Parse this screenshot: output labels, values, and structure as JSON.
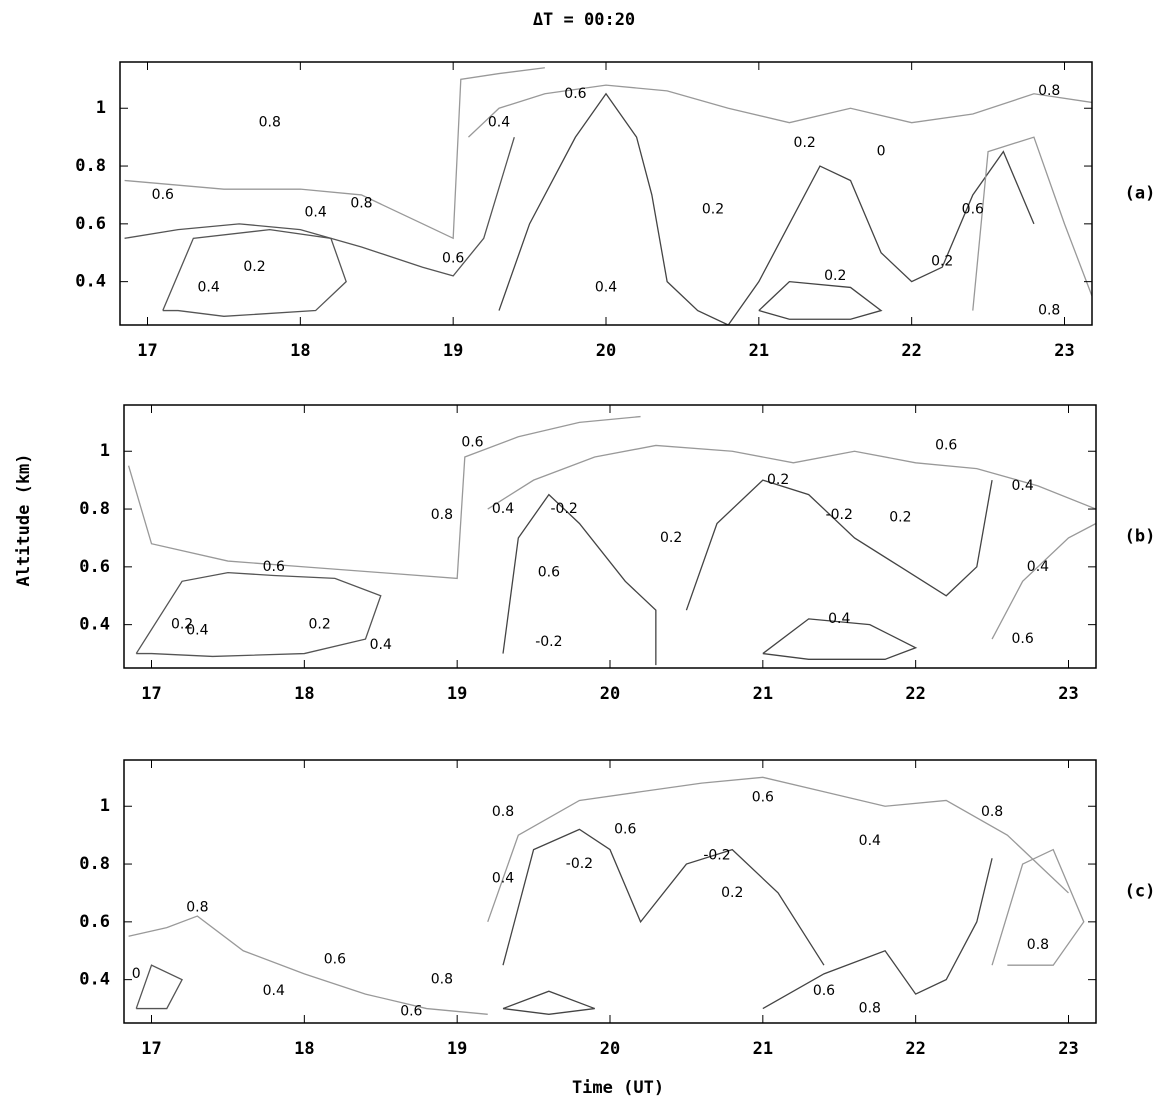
{
  "figure": {
    "title": "ΔT = 00:20",
    "ylabel": "Altitude (km)",
    "xlabel": "Time (UT)"
  },
  "chart_data": [
    {
      "type": "contour",
      "label": "(a)",
      "xlim": [
        16.82,
        23.18
      ],
      "ylim": [
        0.25,
        1.16
      ],
      "xticks": [
        17,
        18,
        19,
        20,
        21,
        22,
        23
      ],
      "yticks": [
        0.4,
        0.6,
        0.8,
        1
      ],
      "contours": [
        {
          "color": "#999999",
          "x": [
            16.85,
            17.5,
            18.0,
            18.4,
            18.8,
            19.0,
            19.05,
            19.3,
            19.6
          ],
          "y": [
            0.75,
            0.72,
            0.72,
            0.7,
            0.6,
            0.55,
            1.1,
            1.12,
            1.14
          ]
        },
        {
          "color": "#555555",
          "x": [
            16.85,
            17.2,
            17.6,
            18.0,
            18.4,
            18.8,
            19.0,
            19.2,
            19.4
          ],
          "y": [
            0.55,
            0.58,
            0.6,
            0.58,
            0.52,
            0.45,
            0.42,
            0.55,
            0.9
          ]
        },
        {
          "color": "#555555",
          "x": [
            17.1,
            17.3,
            17.8,
            18.2,
            18.3,
            18.1,
            17.5,
            17.2,
            17.1
          ],
          "y": [
            0.3,
            0.55,
            0.58,
            0.55,
            0.4,
            0.3,
            0.28,
            0.3,
            0.3
          ]
        },
        {
          "color": "#444444",
          "x": [
            19.3,
            19.5,
            19.8,
            20.0,
            20.2,
            20.3,
            20.4,
            20.6,
            20.8
          ],
          "y": [
            0.3,
            0.6,
            0.9,
            1.05,
            0.9,
            0.7,
            0.4,
            0.3,
            0.25
          ]
        },
        {
          "color": "#999999",
          "x": [
            19.1,
            19.3,
            19.6,
            20.0,
            20.4,
            20.8,
            21.2,
            21.6,
            22.0,
            22.4,
            22.8,
            23.18
          ],
          "y": [
            0.9,
            1.0,
            1.05,
            1.08,
            1.06,
            1.0,
            0.95,
            1.0,
            0.95,
            0.98,
            1.05,
            1.02
          ]
        },
        {
          "color": "#444444",
          "x": [
            20.8,
            21.0,
            21.2,
            21.4,
            21.6,
            21.8,
            22.0,
            22.2,
            22.4,
            22.6,
            22.8
          ],
          "y": [
            0.25,
            0.4,
            0.6,
            0.8,
            0.75,
            0.5,
            0.4,
            0.45,
            0.7,
            0.85,
            0.6
          ]
        },
        {
          "color": "#444444",
          "x": [
            21.0,
            21.2,
            21.6,
            21.8,
            21.6,
            21.2,
            21.0
          ],
          "y": [
            0.3,
            0.4,
            0.38,
            0.3,
            0.27,
            0.27,
            0.3
          ]
        },
        {
          "color": "#999999",
          "x": [
            22.4,
            22.5,
            22.8,
            23.0,
            23.18
          ],
          "y": [
            0.3,
            0.85,
            0.9,
            0.6,
            0.35
          ]
        }
      ],
      "contour_labels": [
        {
          "x": 17.8,
          "y": 0.95,
          "level": 0.8
        },
        {
          "x": 17.1,
          "y": 0.7,
          "level": 0.6
        },
        {
          "x": 18.1,
          "y": 0.64,
          "level": 0.4
        },
        {
          "x": 18.4,
          "y": 0.67,
          "level": 0.8
        },
        {
          "x": 17.4,
          "y": 0.38,
          "level": 0.4
        },
        {
          "x": 17.7,
          "y": 0.45,
          "level": 0.2
        },
        {
          "x": 19.0,
          "y": 0.48,
          "level": 0.6
        },
        {
          "x": 19.3,
          "y": 0.95,
          "level": 0.4
        },
        {
          "x": 19.8,
          "y": 1.05,
          "level": 0.6
        },
        {
          "x": 20.0,
          "y": 0.38,
          "level": 0.4
        },
        {
          "x": 20.7,
          "y": 0.65,
          "level": 0.2
        },
        {
          "x": 21.3,
          "y": 0.88,
          "level": 0.2
        },
        {
          "x": 21.5,
          "y": 0.42,
          "level": 0.2
        },
        {
          "x": 22.2,
          "y": 0.47,
          "level": 0.2
        },
        {
          "x": 22.9,
          "y": 1.06,
          "level": 0.8
        },
        {
          "x": 22.9,
          "y": 0.3,
          "level": 0.8
        },
        {
          "x": 21.8,
          "y": 0.85,
          "level": 0
        },
        {
          "x": 22.4,
          "y": 0.65,
          "level": 0.6
        }
      ]
    },
    {
      "type": "contour",
      "label": "(b)",
      "xlim": [
        16.82,
        23.18
      ],
      "ylim": [
        0.25,
        1.16
      ],
      "xticks": [
        17,
        18,
        19,
        20,
        21,
        22,
        23
      ],
      "yticks": [
        0.4,
        0.6,
        0.8,
        1
      ],
      "contours": [
        {
          "color": "#999999",
          "x": [
            16.85,
            17.0,
            17.5,
            18.0,
            18.5,
            19.0,
            19.05,
            19.4,
            19.8,
            20.2
          ],
          "y": [
            0.95,
            0.68,
            0.62,
            0.6,
            0.58,
            0.56,
            0.98,
            1.05,
            1.1,
            1.12
          ]
        },
        {
          "color": "#555555",
          "x": [
            16.9,
            17.2,
            17.5,
            17.8,
            18.2,
            18.5,
            18.4,
            18.0,
            17.4,
            17.0,
            16.9
          ],
          "y": [
            0.3,
            0.55,
            0.58,
            0.57,
            0.56,
            0.5,
            0.35,
            0.3,
            0.29,
            0.3,
            0.3
          ]
        },
        {
          "color": "#444444",
          "x": [
            19.3,
            19.4,
            19.6,
            19.8,
            20.1,
            20.3,
            20.3
          ],
          "y": [
            0.3,
            0.7,
            0.85,
            0.75,
            0.55,
            0.45,
            0.26
          ]
        },
        {
          "color": "#999999",
          "x": [
            19.2,
            19.5,
            19.9,
            20.3,
            20.8,
            21.2,
            21.6,
            22.0,
            22.4,
            22.8,
            23.18
          ],
          "y": [
            0.8,
            0.9,
            0.98,
            1.02,
            1.0,
            0.96,
            1.0,
            0.96,
            0.94,
            0.88,
            0.8
          ]
        },
        {
          "color": "#444444",
          "x": [
            20.5,
            20.7,
            21.0,
            21.3,
            21.6,
            21.9,
            22.2,
            22.4,
            22.5
          ],
          "y": [
            0.45,
            0.75,
            0.9,
            0.85,
            0.7,
            0.6,
            0.5,
            0.6,
            0.9
          ]
        },
        {
          "color": "#444444",
          "x": [
            21.0,
            21.3,
            21.7,
            22.0,
            21.8,
            21.3,
            21.0
          ],
          "y": [
            0.3,
            0.42,
            0.4,
            0.32,
            0.28,
            0.28,
            0.3
          ]
        },
        {
          "color": "#999999",
          "x": [
            22.5,
            22.7,
            23.0,
            23.18
          ],
          "y": [
            0.35,
            0.55,
            0.7,
            0.75
          ]
        }
      ],
      "contour_labels": [
        {
          "x": 17.8,
          "y": 0.6,
          "level": 0.6
        },
        {
          "x": 17.2,
          "y": 0.4,
          "level": 0.2
        },
        {
          "x": 17.3,
          "y": 0.38,
          "level": 0.4
        },
        {
          "x": 18.1,
          "y": 0.4,
          "level": 0.2
        },
        {
          "x": 18.5,
          "y": 0.33,
          "level": 0.4
        },
        {
          "x": 18.9,
          "y": 0.78,
          "level": 0.8
        },
        {
          "x": 19.1,
          "y": 1.03,
          "level": 0.6
        },
        {
          "x": 19.3,
          "y": 0.8,
          "level": 0.4
        },
        {
          "x": 19.7,
          "y": 0.8,
          "level": -0.2
        },
        {
          "x": 19.6,
          "y": 0.34,
          "level": -0.2
        },
        {
          "x": 19.6,
          "y": 0.58,
          "level": 0.6
        },
        {
          "x": 20.4,
          "y": 0.7,
          "level": 0.2
        },
        {
          "x": 21.1,
          "y": 0.9,
          "level": 0.2
        },
        {
          "x": 21.5,
          "y": 0.78,
          "level": -0.2
        },
        {
          "x": 21.9,
          "y": 0.77,
          "level": 0.2
        },
        {
          "x": 21.5,
          "y": 0.42,
          "level": 0.4
        },
        {
          "x": 22.2,
          "y": 1.02,
          "level": 0.6
        },
        {
          "x": 22.7,
          "y": 0.88,
          "level": 0.4
        },
        {
          "x": 22.8,
          "y": 0.6,
          "level": 0.4
        },
        {
          "x": 22.7,
          "y": 0.35,
          "level": 0.6
        }
      ]
    },
    {
      "type": "contour",
      "label": "(c)",
      "xlim": [
        16.82,
        23.18
      ],
      "ylim": [
        0.25,
        1.16
      ],
      "xticks": [
        17,
        18,
        19,
        20,
        21,
        22,
        23
      ],
      "yticks": [
        0.4,
        0.6,
        0.8,
        1
      ],
      "contours": [
        {
          "color": "#999999",
          "x": [
            16.85,
            17.1,
            17.3,
            17.6,
            18.0,
            18.4,
            18.8,
            19.2
          ],
          "y": [
            0.55,
            0.58,
            0.62,
            0.5,
            0.42,
            0.35,
            0.3,
            0.28
          ]
        },
        {
          "color": "#555555",
          "x": [
            16.9,
            17.0,
            17.2,
            17.1,
            16.9
          ],
          "y": [
            0.3,
            0.45,
            0.4,
            0.3,
            0.3
          ]
        },
        {
          "color": "#999999",
          "x": [
            19.2,
            19.4,
            19.8,
            20.2,
            20.6,
            21.0,
            21.4,
            21.8,
            22.2,
            22.6,
            23.0
          ],
          "y": [
            0.6,
            0.9,
            1.02,
            1.05,
            1.08,
            1.1,
            1.05,
            1.0,
            1.02,
            0.9,
            0.7
          ]
        },
        {
          "color": "#444444",
          "x": [
            19.3,
            19.5,
            19.8,
            20.0,
            20.2,
            20.5,
            20.8,
            21.1,
            21.4
          ],
          "y": [
            0.45,
            0.85,
            0.92,
            0.85,
            0.6,
            0.8,
            0.85,
            0.7,
            0.45
          ]
        },
        {
          "color": "#444444",
          "x": [
            19.3,
            19.6,
            19.9,
            19.6,
            19.3
          ],
          "y": [
            0.3,
            0.36,
            0.3,
            0.28,
            0.3
          ]
        },
        {
          "color": "#444444",
          "x": [
            21.0,
            21.4,
            21.8,
            22.0,
            22.2,
            22.4,
            22.5
          ],
          "y": [
            0.3,
            0.42,
            0.5,
            0.35,
            0.4,
            0.6,
            0.82
          ]
        },
        {
          "color": "#999999",
          "x": [
            22.5,
            22.7,
            22.9,
            23.1,
            22.9,
            22.6
          ],
          "y": [
            0.45,
            0.8,
            0.85,
            0.6,
            0.45,
            0.45
          ]
        }
      ],
      "contour_labels": [
        {
          "x": 17.3,
          "y": 0.65,
          "level": 0.8
        },
        {
          "x": 16.9,
          "y": 0.42,
          "level": 0
        },
        {
          "x": 17.8,
          "y": 0.36,
          "level": 0.4
        },
        {
          "x": 18.2,
          "y": 0.47,
          "level": 0.6
        },
        {
          "x": 18.7,
          "y": 0.29,
          "level": 0.6
        },
        {
          "x": 18.9,
          "y": 0.4,
          "level": 0.8
        },
        {
          "x": 19.3,
          "y": 0.98,
          "level": 0.8
        },
        {
          "x": 19.3,
          "y": 0.75,
          "level": 0.4
        },
        {
          "x": 19.8,
          "y": 0.8,
          "level": -0.2
        },
        {
          "x": 20.1,
          "y": 0.92,
          "level": 0.6
        },
        {
          "x": 20.7,
          "y": 0.83,
          "level": -0.2
        },
        {
          "x": 21.0,
          "y": 1.03,
          "level": 0.6
        },
        {
          "x": 20.8,
          "y": 0.7,
          "level": 0.2
        },
        {
          "x": 21.4,
          "y": 0.36,
          "level": 0.6
        },
        {
          "x": 21.7,
          "y": 0.3,
          "level": 0.8
        },
        {
          "x": 21.7,
          "y": 0.88,
          "level": 0.4
        },
        {
          "x": 22.5,
          "y": 0.98,
          "level": 0.8
        },
        {
          "x": 22.8,
          "y": 0.52,
          "level": 0.8
        }
      ]
    }
  ]
}
